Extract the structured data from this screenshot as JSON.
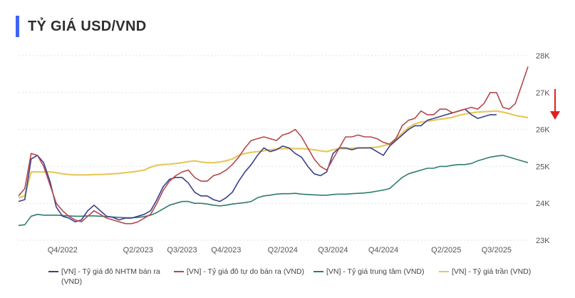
{
  "header": {
    "title": "TỶ GIÁ USD/VND"
  },
  "chart_data": {
    "type": "line",
    "title": "TỶ GIÁ USD/VND",
    "x_tick_labels": [
      "Q4/2022",
      "Q2/2023",
      "Q3/2023",
      "Q4/2023",
      "Q2/2024",
      "Q3/2024",
      "Q4/2024",
      "Q2/2025",
      "Q3/2025"
    ],
    "y_tick_labels": [
      "23K",
      "24K",
      "25K",
      "26K",
      "27K",
      "28K"
    ],
    "y_ticks": [
      23000,
      24000,
      25000,
      26000,
      27000,
      28000
    ],
    "ylim": [
      23000,
      28000
    ],
    "x_axis_unit": "months since Jul 2022",
    "x_ticks": [
      3.5,
      9.5,
      13,
      16.5,
      21,
      25,
      29,
      34,
      38
    ],
    "xlim": [
      0,
      40.5
    ],
    "grid": true,
    "y_axis_side": "right",
    "legend_position": "bottom",
    "trend_arrow_color": "#e02020",
    "series": [
      {
        "name": "[VN] - Tỷ giá đô NHTM bán ra (VND)",
        "color": "#3b3f8c",
        "x": [
          0,
          0.5,
          1,
          1.5,
          2,
          2.5,
          3,
          3.5,
          4,
          4.5,
          5,
          5.5,
          6,
          6.5,
          7,
          7.5,
          8,
          8.5,
          9,
          9.5,
          10,
          10.5,
          11,
          11.5,
          12,
          12.5,
          13,
          13.5,
          14,
          14.5,
          15,
          15.5,
          16,
          16.5,
          17,
          17.5,
          18,
          18.5,
          19,
          19.5,
          20,
          20.5,
          21,
          21.5,
          22,
          22.5,
          23,
          23.5,
          24,
          24.5,
          25,
          25.5,
          26,
          26.5,
          27,
          27.5,
          28,
          28.5,
          29,
          29.5,
          30,
          30.5,
          31,
          31.5,
          32,
          32.5,
          33,
          33.5,
          34,
          34.5,
          35,
          35.5,
          36,
          36.5,
          37,
          37.5,
          38
        ],
        "values": [
          24050,
          24100,
          25200,
          25300,
          25100,
          24600,
          23900,
          23650,
          23600,
          23500,
          23550,
          23800,
          23950,
          23800,
          23650,
          23620,
          23550,
          23600,
          23600,
          23650,
          23700,
          23800,
          24100,
          24450,
          24650,
          24700,
          24700,
          24550,
          24300,
          24200,
          24200,
          24100,
          24050,
          24150,
          24300,
          24600,
          24850,
          25050,
          25300,
          25500,
          25400,
          25450,
          25550,
          25500,
          25350,
          25250,
          25000,
          24800,
          24750,
          24850,
          25350,
          25500,
          25500,
          25450,
          25500,
          25500,
          25500,
          25400,
          25300,
          25550,
          25700,
          25850,
          26000,
          26100,
          26100,
          26250,
          26300,
          26350,
          26400,
          26450,
          26500,
          26550,
          26400,
          26300,
          26350,
          26400,
          26400
        ]
      },
      {
        "name": "[VN] - Tỷ giá đô tự do bán ra (VND)",
        "color": "#b5484b",
        "x": [
          0,
          0.5,
          1,
          1.5,
          2,
          2.5,
          3,
          3.5,
          4,
          4.5,
          5,
          5.5,
          6,
          6.5,
          7,
          7.5,
          8,
          8.5,
          9,
          9.5,
          10,
          10.5,
          11,
          11.5,
          12,
          12.5,
          13,
          13.5,
          14,
          14.5,
          15,
          15.5,
          16,
          16.5,
          17,
          17.5,
          18,
          18.5,
          19,
          19.5,
          20,
          20.5,
          21,
          21.5,
          22,
          22.5,
          23,
          23.5,
          24,
          24.5,
          25,
          25.5,
          26,
          26.5,
          27,
          27.5,
          28,
          28.5,
          29,
          29.5,
          30,
          30.5,
          31,
          31.5,
          32,
          32.5,
          33,
          33.5,
          34,
          34.5,
          35,
          35.5,
          36,
          36.5,
          37,
          37.5,
          38,
          38.5,
          39,
          39.5,
          40,
          40.5
        ],
        "values": [
          24200,
          24400,
          25350,
          25300,
          25000,
          24500,
          24000,
          23800,
          23650,
          23550,
          23500,
          23650,
          23800,
          23700,
          23600,
          23550,
          23500,
          23450,
          23450,
          23500,
          23600,
          23700,
          24000,
          24350,
          24600,
          24750,
          24850,
          24900,
          24700,
          24600,
          24600,
          24750,
          24800,
          24900,
          25050,
          25250,
          25500,
          25700,
          25750,
          25800,
          25750,
          25700,
          25850,
          25900,
          26000,
          25800,
          25500,
          25200,
          25000,
          24900,
          25200,
          25500,
          25800,
          25800,
          25850,
          25800,
          25800,
          25750,
          25650,
          25600,
          25750,
          26100,
          26250,
          26300,
          26500,
          26400,
          26400,
          26550,
          26550,
          26450,
          26500,
          26550,
          26600,
          26550,
          26700,
          27000,
          27000,
          26600,
          26550,
          26700,
          27200,
          27700
        ]
      },
      {
        "name": "[VN] - Tỷ giá trung tâm (VND)",
        "color": "#2e7d6f",
        "x": [
          0,
          0.5,
          1,
          1.5,
          2,
          2.5,
          3,
          3.5,
          4,
          4.5,
          5,
          5.5,
          6,
          6.5,
          7,
          7.5,
          8,
          8.5,
          9,
          9.5,
          10,
          10.5,
          11,
          11.5,
          12,
          12.5,
          13,
          13.5,
          14,
          14.5,
          15,
          15.5,
          16,
          16.5,
          17,
          17.5,
          18,
          18.5,
          19,
          19.5,
          20,
          20.5,
          21,
          21.5,
          22,
          22.5,
          23,
          23.5,
          24,
          24.5,
          25,
          25.5,
          26,
          26.5,
          27,
          27.5,
          28,
          28.5,
          29,
          29.5,
          30,
          30.5,
          31,
          31.5,
          32,
          32.5,
          33,
          33.5,
          34,
          34.5,
          35,
          35.5,
          36,
          36.5,
          37,
          37.5,
          38,
          38.5,
          39,
          39.5,
          40,
          40.5
        ],
        "values": [
          23400,
          23420,
          23650,
          23700,
          23680,
          23680,
          23680,
          23670,
          23660,
          23650,
          23650,
          23660,
          23660,
          23650,
          23640,
          23630,
          23620,
          23610,
          23610,
          23620,
          23640,
          23680,
          23750,
          23850,
          23950,
          24000,
          24050,
          24050,
          24000,
          24000,
          23980,
          23950,
          23930,
          23950,
          23980,
          24000,
          24020,
          24050,
          24150,
          24200,
          24220,
          24250,
          24260,
          24260,
          24270,
          24250,
          24240,
          24230,
          24220,
          24220,
          24240,
          24250,
          24250,
          24260,
          24270,
          24280,
          24300,
          24330,
          24360,
          24400,
          24550,
          24700,
          24800,
          24850,
          24900,
          24950,
          24950,
          25000,
          25000,
          25030,
          25050,
          25050,
          25080,
          25150,
          25200,
          25250,
          25280,
          25300,
          25250,
          25200,
          25150,
          25100
        ]
      },
      {
        "name": "[VN] - Tỷ giá trần (VND)",
        "color": "#e6c85a",
        "x": [
          0,
          0.5,
          1,
          1.5,
          2,
          2.5,
          3,
          3.5,
          4,
          4.5,
          5,
          5.5,
          6,
          6.5,
          7,
          7.5,
          8,
          8.5,
          9,
          9.5,
          10,
          10.5,
          11,
          11.5,
          12,
          12.5,
          13,
          13.5,
          14,
          14.5,
          15,
          15.5,
          16,
          16.5,
          17,
          17.5,
          18,
          18.5,
          19,
          19.5,
          20,
          20.5,
          21,
          21.5,
          22,
          22.5,
          23,
          23.5,
          24,
          24.5,
          25,
          25.5,
          26,
          26.5,
          27,
          27.5,
          28,
          28.5,
          29,
          29.5,
          30,
          30.5,
          31,
          31.5,
          32,
          32.5,
          33,
          33.5,
          34,
          34.5,
          35,
          35.5,
          36,
          36.5,
          37,
          37.5,
          38,
          38.5,
          39,
          39.5,
          40,
          40.5
        ],
        "values": [
          24150,
          24200,
          24850,
          24850,
          24850,
          24850,
          24830,
          24800,
          24780,
          24770,
          24770,
          24770,
          24780,
          24780,
          24790,
          24800,
          24810,
          24830,
          24850,
          24870,
          24900,
          24980,
          25030,
          25050,
          25060,
          25080,
          25100,
          25130,
          25150,
          25120,
          25100,
          25100,
          25120,
          25150,
          25200,
          25300,
          25350,
          25380,
          25400,
          25420,
          25450,
          25470,
          25480,
          25480,
          25480,
          25480,
          25470,
          25450,
          25420,
          25400,
          25450,
          25480,
          25480,
          25490,
          25500,
          25500,
          25510,
          25520,
          25560,
          25600,
          25750,
          25900,
          26050,
          26150,
          26200,
          26220,
          26250,
          26280,
          26300,
          26330,
          26380,
          26420,
          26450,
          26470,
          26480,
          26490,
          26500,
          26470,
          26430,
          26380,
          26350,
          26320
        ]
      }
    ]
  }
}
